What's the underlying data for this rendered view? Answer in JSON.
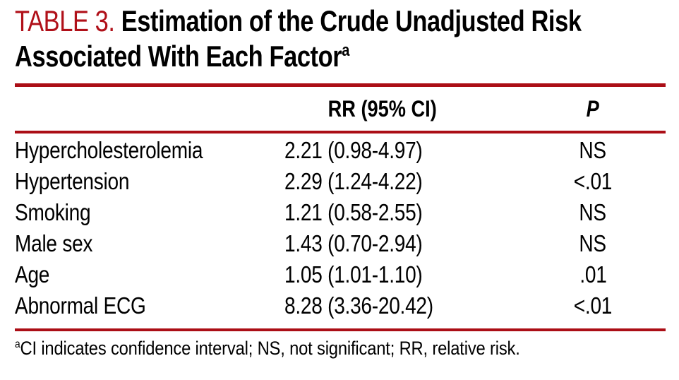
{
  "colors": {
    "accent_red": "#ab0e16",
    "title_red": "#b01019",
    "text_black": "#000000",
    "background": "#ffffff"
  },
  "title": {
    "label": "TABLE 3.",
    "line1": "Estimation of the Crude Unadjusted Risk",
    "line2": "Associated With Each Factor",
    "superscript": "a"
  },
  "table": {
    "columns": [
      "",
      "RR (95% CI)",
      "P"
    ],
    "rows": [
      {
        "factor": "Hypercholesterolemia",
        "rr": "2.21 (0.98-4.97)",
        "p": "NS"
      },
      {
        "factor": "Hypertension",
        "rr": "2.29 (1.24-4.22)",
        "p": "<.01"
      },
      {
        "factor": "Smoking",
        "rr": "1.21 (0.58-2.55)",
        "p": "NS"
      },
      {
        "factor": "Male sex",
        "rr": "1.43 (0.70-2.94)",
        "p": "NS"
      },
      {
        "factor": "Age",
        "rr": "1.05 (1.01-1.10)",
        "p": ".01"
      },
      {
        "factor": "Abnormal ECG",
        "rr": "8.28 (3.36-20.42)",
        "p": "<.01"
      }
    ]
  },
  "footnote": {
    "superscript": "a",
    "text": "CI indicates confidence interval; NS, not significant; RR, relative risk."
  }
}
